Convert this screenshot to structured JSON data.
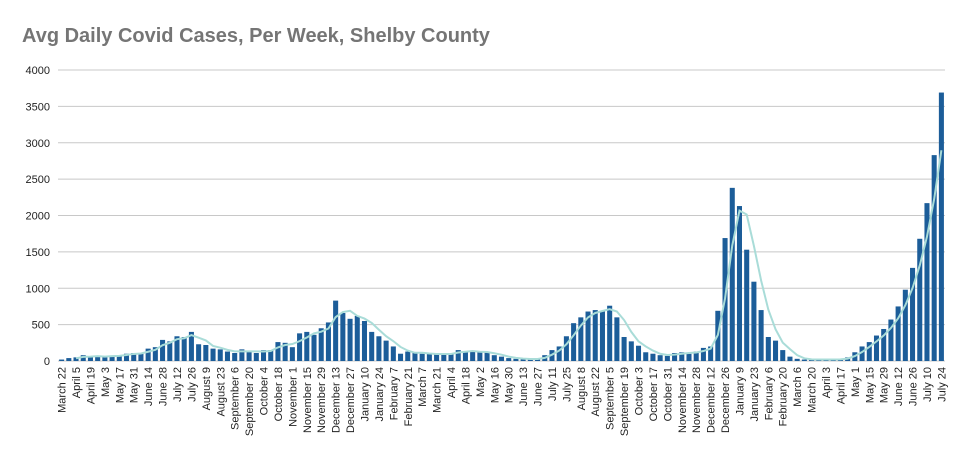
{
  "chart_data": {
    "type": "bar",
    "title": "Avg Daily Covid Cases, Per Week, Shelby County",
    "categories": [
      "March 22",
      null,
      "April 5",
      null,
      "April 19",
      null,
      "May 3",
      null,
      "May 17",
      null,
      "May 31",
      null,
      "June 14",
      null,
      "June 28",
      null,
      "July 12",
      null,
      "July 26",
      null,
      "August 9",
      null,
      "August 23",
      null,
      "September 6",
      null,
      "September 20",
      null,
      "October 4",
      null,
      "October 18",
      null,
      "November 1",
      null,
      "November 15",
      null,
      "November 29",
      null,
      "December 13",
      null,
      "December 27",
      null,
      "January 10",
      null,
      "January 24",
      null,
      "February 7",
      null,
      "February 21",
      null,
      "March 7",
      null,
      "March 21",
      null,
      "April 4",
      null,
      "April 18",
      null,
      "May 2",
      null,
      "May 16",
      null,
      "May 30",
      null,
      "June 13",
      null,
      "June 27",
      null,
      "July 11",
      null,
      "July 25",
      null,
      "August 8",
      null,
      "August 22",
      null,
      "September 5",
      null,
      "September 19",
      null,
      "October 3",
      null,
      "October 17",
      null,
      "October 31",
      null,
      "November 14",
      null,
      "November 28",
      null,
      "December 12",
      null,
      "December 26",
      null,
      "January 9",
      null,
      "January 23",
      null,
      "February 6",
      null,
      "February 20",
      null,
      "March 6",
      null,
      "March 20",
      null,
      "April 3",
      null,
      "April 17",
      null,
      "May 1",
      null,
      "May 15",
      null,
      "May 29",
      null,
      "June 12",
      null,
      "June 26",
      null,
      "July 10",
      null,
      "July 24"
    ],
    "series": [
      {
        "color": "#1c5d99",
        "values": [
          20,
          40,
          50,
          80,
          50,
          70,
          60,
          70,
          80,
          100,
          110,
          100,
          170,
          190,
          290,
          270,
          340,
          330,
          400,
          230,
          220,
          170,
          160,
          130,
          110,
          160,
          130,
          110,
          150,
          150,
          260,
          250,
          190,
          380,
          400,
          360,
          450,
          530,
          830,
          660,
          580,
          620,
          550,
          400,
          340,
          280,
          200,
          100,
          130,
          110,
          100,
          100,
          90,
          100,
          100,
          150,
          130,
          130,
          120,
          120,
          80,
          60,
          40,
          30,
          30,
          20,
          30,
          80,
          150,
          200,
          340,
          520,
          600,
          680,
          700,
          680,
          760,
          600,
          330,
          270,
          210,
          120,
          100,
          80,
          70,
          110,
          120,
          100,
          130,
          180,
          200,
          690,
          1690,
          2380,
          2130,
          1530,
          1090,
          700,
          330,
          280,
          150,
          60,
          30,
          20,
          20,
          20,
          20,
          20,
          30,
          50,
          120,
          200,
          260,
          350,
          440,
          570,
          750,
          980,
          1280,
          1680,
          2170,
          2830,
          3690
        ]
      },
      {
        "type": "line",
        "color": "#a9dcd8",
        "values": [
          null,
          null,
          37,
          57,
          60,
          67,
          60,
          67,
          70,
          83,
          97,
          103,
          127,
          153,
          217,
          250,
          300,
          313,
          357,
          320,
          283,
          207,
          183,
          153,
          133,
          133,
          133,
          133,
          130,
          137,
          187,
          220,
          233,
          273,
          323,
          380,
          403,
          447,
          603,
          673,
          690,
          620,
          583,
          523,
          430,
          340,
          273,
          193,
          143,
          113,
          113,
          103,
          97,
          97,
          97,
          117,
          127,
          137,
          127,
          123,
          107,
          87,
          60,
          43,
          33,
          27,
          27,
          43,
          87,
          143,
          230,
          353,
          487,
          600,
          660,
          687,
          713,
          680,
          563,
          400,
          270,
          200,
          143,
          100,
          83,
          87,
          100,
          110,
          117,
          137,
          170,
          357,
          860,
          1587,
          2067,
          2013,
          1583,
          1107,
          707,
          437,
          253,
          163,
          80,
          37,
          23,
          20,
          20,
          20,
          23,
          33,
          67,
          123,
          193,
          270,
          350,
          453,
          587,
          767,
          1003,
          1313,
          1710,
          2227,
          2897
        ]
      }
    ],
    "ylim": [
      0,
      4000
    ],
    "yticks": [
      0,
      500,
      1000,
      1500,
      2000,
      2500,
      3000,
      3500,
      4000
    ],
    "grid": true
  }
}
